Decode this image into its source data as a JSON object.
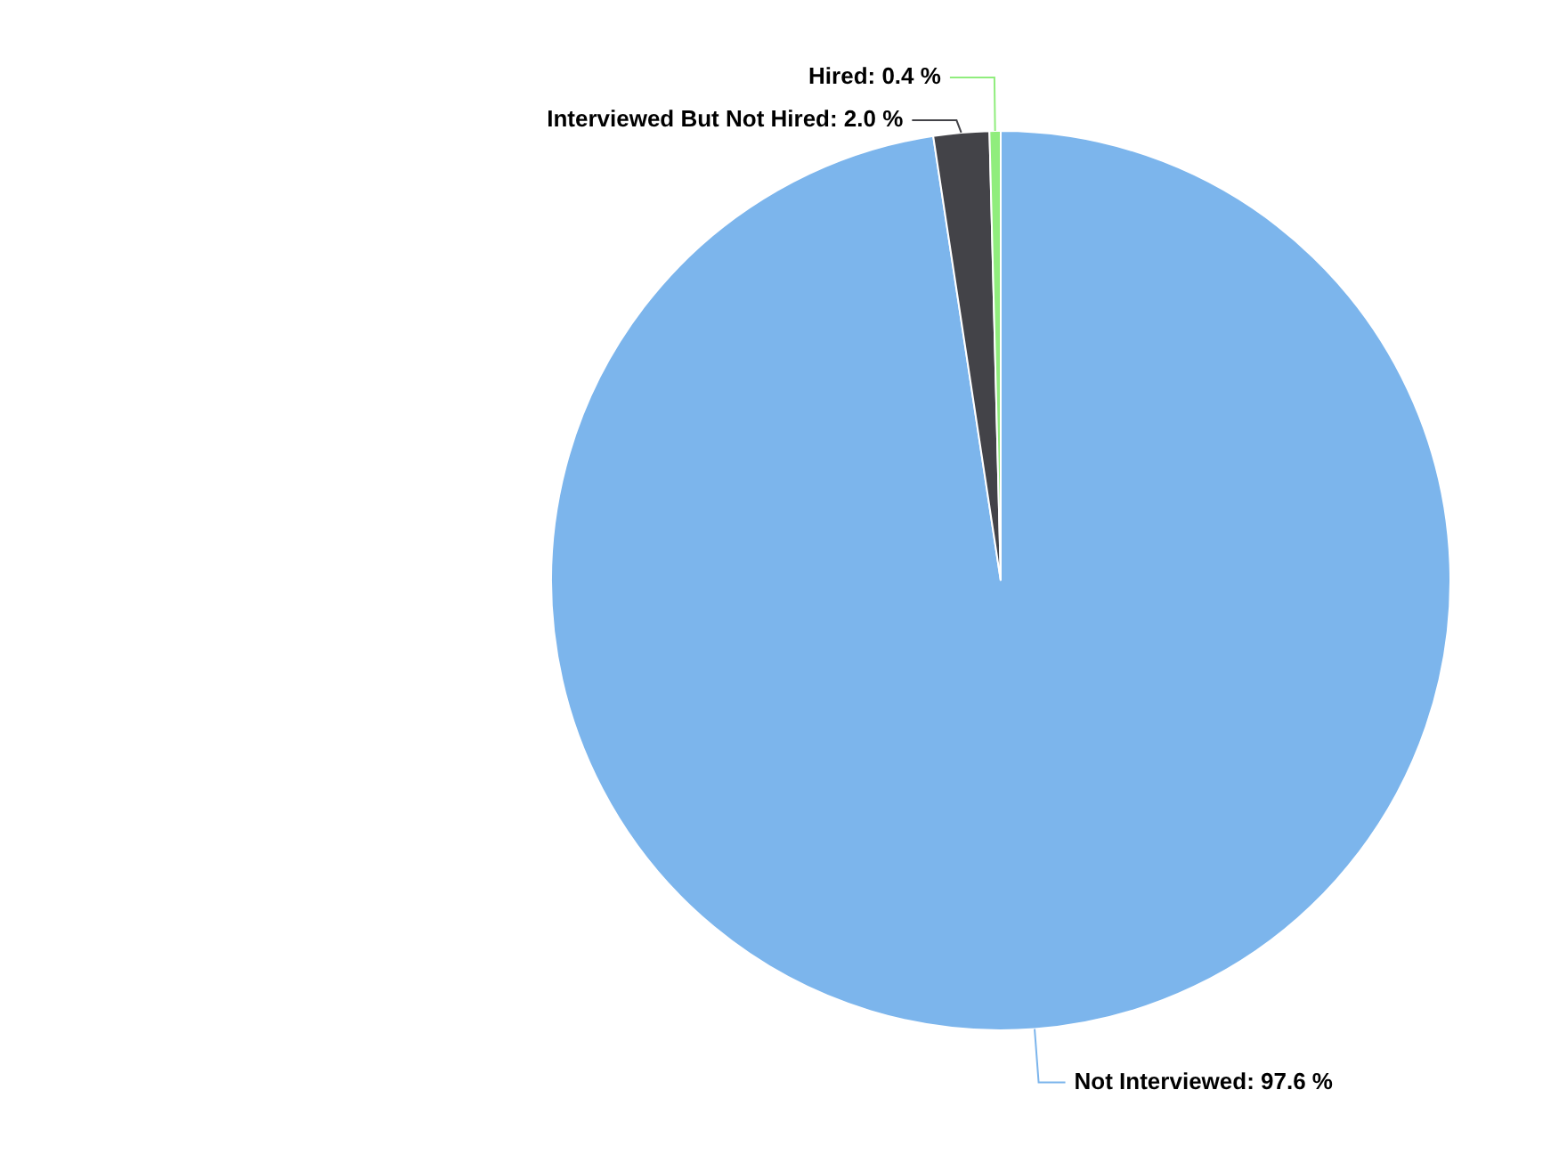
{
  "chart_data": {
    "type": "pie",
    "categories": [
      "Not Interviewed",
      "Interviewed But Not Hired",
      "Hired"
    ],
    "values": [
      97.6,
      2.0,
      0.4
    ],
    "colors": [
      "#7cb5ec",
      "#434348",
      "#90ed7d"
    ],
    "value_labels": [
      "97.6 %",
      "2.0 %",
      "0.4 %"
    ],
    "legend": false
  }
}
